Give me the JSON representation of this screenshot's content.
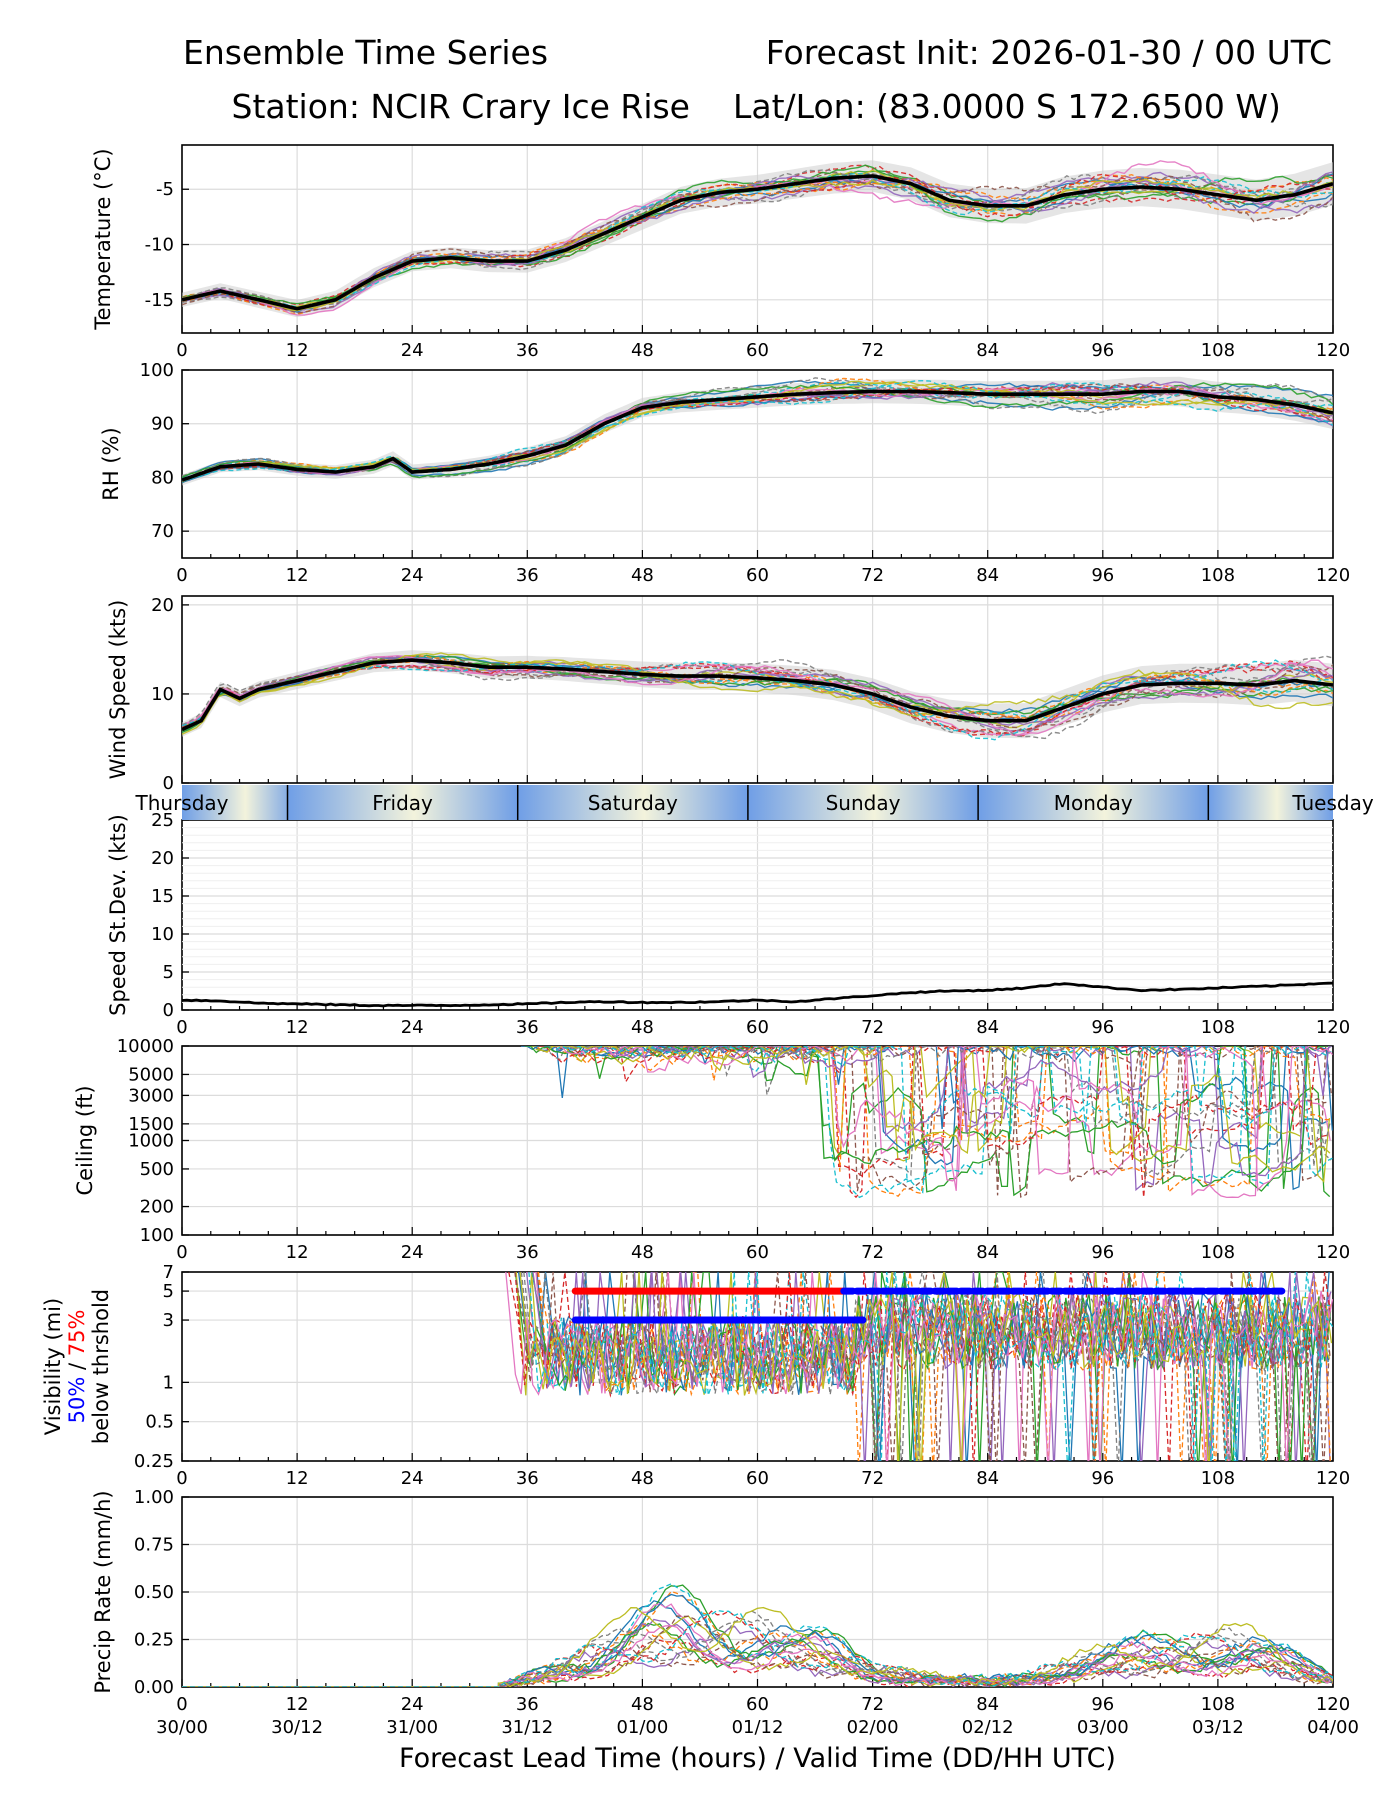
{
  "header": {
    "left_line1": "Ensemble Time Series",
    "right_line1": "Forecast Init: 2026-01-30 / 00 UTC",
    "left_line2": "Station: NCIR Crary Ice Rise",
    "right_line2": "Lat/Lon: (83.0000 S 172.6500 W)"
  },
  "colors": {
    "mean_line": "#000000",
    "spread_fill": "#d0d0d0",
    "vis_50": "#0000ff",
    "vis_75": "#ff0000",
    "day_band_blue": "#6f9ee6",
    "day_band_cream": "#f3f3dc",
    "member_palette": [
      "#1f77b4",
      "#ff7f0e",
      "#2ca02c",
      "#d62728",
      "#9467bd",
      "#8c564b",
      "#e377c2",
      "#7f7f7f",
      "#bcbd22",
      "#17becf"
    ]
  },
  "chart_data": [
    {
      "type": "line",
      "name": "temperature",
      "ylabel": "Temperature (°C)",
      "ylim": [
        -18,
        -1
      ],
      "yticks": [
        -15,
        -10,
        -5
      ],
      "xlim": [
        0,
        120
      ],
      "xticks": [
        0,
        12,
        24,
        36,
        48,
        60,
        72,
        84,
        96,
        108,
        120
      ],
      "mean_series": {
        "x": [
          0,
          4,
          8,
          12,
          16,
          20,
          24,
          28,
          32,
          36,
          40,
          44,
          48,
          52,
          56,
          60,
          64,
          68,
          72,
          76,
          80,
          84,
          88,
          92,
          96,
          100,
          104,
          108,
          112,
          116,
          120
        ],
        "values": [
          -15.0,
          -14.2,
          -15.0,
          -15.8,
          -15.0,
          -13.0,
          -11.5,
          -11.2,
          -11.5,
          -11.5,
          -10.5,
          -9.0,
          -7.5,
          -6.0,
          -5.3,
          -5.0,
          -4.5,
          -4.0,
          -3.8,
          -4.5,
          -6.0,
          -6.5,
          -6.5,
          -5.5,
          -5.0,
          -4.8,
          -5.0,
          -5.5,
          -6.0,
          -5.5,
          -4.5
        ]
      },
      "spread": 1.3,
      "members": 20
    },
    {
      "type": "line",
      "name": "relative_humidity",
      "ylabel": "RH (%)",
      "ylim": [
        65,
        100
      ],
      "yticks": [
        70,
        80,
        90,
        100
      ],
      "xlim": [
        0,
        120
      ],
      "xticks": [
        0,
        12,
        24,
        36,
        48,
        60,
        72,
        84,
        96,
        108,
        120
      ],
      "mean_series": {
        "x": [
          0,
          4,
          8,
          12,
          16,
          20,
          22,
          24,
          28,
          32,
          36,
          40,
          44,
          48,
          52,
          56,
          60,
          64,
          68,
          72,
          76,
          80,
          84,
          88,
          92,
          96,
          100,
          104,
          108,
          112,
          116,
          120
        ],
        "values": [
          79.5,
          82.0,
          82.5,
          81.5,
          81.0,
          82.0,
          83.5,
          81.0,
          81.5,
          82.5,
          84.0,
          86.0,
          90.0,
          93.0,
          94.0,
          94.5,
          95.0,
          95.5,
          95.8,
          96.0,
          96.0,
          95.8,
          95.5,
          95.5,
          95.5,
          95.5,
          96.0,
          96.0,
          95.0,
          94.5,
          93.5,
          92.0
        ]
      },
      "spread": 2.0,
      "members": 20
    },
    {
      "type": "line",
      "name": "wind_speed",
      "ylabel": "Wind Speed (kts)",
      "ylim": [
        0,
        21
      ],
      "yticks": [
        0,
        10,
        20
      ],
      "xlim": [
        0,
        120
      ],
      "xticks": [],
      "mean_series": {
        "x": [
          0,
          2,
          4,
          6,
          8,
          10,
          12,
          16,
          20,
          24,
          28,
          32,
          36,
          40,
          44,
          48,
          52,
          56,
          60,
          64,
          68,
          72,
          76,
          80,
          84,
          88,
          92,
          96,
          100,
          104,
          108,
          112,
          116,
          120
        ],
        "values": [
          6.0,
          7.0,
          10.5,
          9.5,
          10.5,
          11.0,
          11.5,
          12.5,
          13.5,
          13.8,
          13.5,
          13.0,
          13.0,
          12.8,
          12.5,
          12.2,
          12.0,
          12.0,
          11.8,
          11.5,
          11.0,
          10.0,
          8.5,
          7.5,
          7.0,
          7.0,
          8.5,
          10.0,
          11.0,
          11.2,
          11.2,
          11.0,
          11.5,
          11.0
        ]
      },
      "spread": 1.6,
      "members": 20
    },
    {
      "type": "line",
      "name": "speed_stdev",
      "ylabel": "Speed St.Dev. (kts)",
      "ylim": [
        0,
        25
      ],
      "yticks": [
        0,
        5,
        10,
        15,
        20,
        25
      ],
      "xlim": [
        0,
        120
      ],
      "xticks": [
        0,
        12,
        24,
        36,
        48,
        60,
        72,
        84,
        96,
        108,
        120
      ],
      "day_labels": [
        "Thursday",
        "Friday",
        "Saturday",
        "Sunday",
        "Monday",
        "Tuesday"
      ],
      "series": {
        "x": [
          0,
          4,
          8,
          12,
          16,
          20,
          24,
          28,
          32,
          36,
          40,
          44,
          48,
          52,
          56,
          60,
          64,
          68,
          72,
          76,
          80,
          84,
          88,
          92,
          96,
          100,
          104,
          108,
          112,
          116,
          120
        ],
        "values": [
          1.3,
          1.2,
          0.9,
          0.8,
          0.7,
          0.6,
          0.6,
          0.6,
          0.7,
          0.8,
          1.0,
          1.1,
          1.0,
          1.0,
          1.1,
          1.3,
          1.1,
          1.5,
          1.9,
          2.3,
          2.5,
          2.6,
          2.9,
          3.5,
          3.0,
          2.6,
          2.7,
          2.9,
          3.1,
          3.3,
          3.6
        ]
      }
    },
    {
      "type": "line",
      "name": "ceiling",
      "ylabel": "Ceiling (ft)",
      "yscale": "log",
      "ylim": [
        100,
        10000
      ],
      "yticks": [
        100,
        200,
        500,
        1000,
        1500,
        3000,
        5000,
        10000
      ],
      "ytick_labels": [
        "100",
        "200",
        "500",
        "1000",
        "1500",
        "3000",
        "5000",
        "10000"
      ],
      "xlim": [
        0,
        120
      ],
      "xticks": [
        0,
        12,
        24,
        36,
        48,
        60,
        72,
        84,
        96,
        108,
        120
      ],
      "onset_hour": 35,
      "members": 20
    },
    {
      "type": "line",
      "name": "visibility",
      "ylabel": "Visibility (mi)",
      "ylabel_part2_50": "50%",
      "ylabel_part2_sep": " / ",
      "ylabel_part2_75": "75%",
      "ylabel_part3": "below thrshold",
      "yscale": "log",
      "ylim": [
        0.25,
        7
      ],
      "yticks": [
        0.25,
        0.5,
        1,
        3,
        5,
        7
      ],
      "ytick_labels": [
        "0.25",
        "0.5",
        "1",
        "3",
        "5",
        "7"
      ],
      "xlim": [
        0,
        120
      ],
      "xticks": [
        0,
        12,
        24,
        36,
        48,
        60,
        72,
        84,
        96,
        108,
        120
      ],
      "threshold_bars": [
        {
          "level": 5,
          "color": "red",
          "x_start": 41,
          "x_end": 69
        },
        {
          "level": 3,
          "color": "red",
          "x_start": 45,
          "x_end": 68
        },
        {
          "level": 3,
          "color": "blue",
          "x_start": 41,
          "x_end": 71
        },
        {
          "level": 5,
          "color": "blue",
          "x_start": 69,
          "x_end": 115
        }
      ],
      "onset_hour": 33,
      "members": 20
    },
    {
      "type": "line",
      "name": "precip_rate",
      "ylabel": "Precip Rate (mm/h)",
      "ylim": [
        0,
        1.0
      ],
      "yticks": [
        0,
        0.25,
        0.5,
        0.75,
        1.0
      ],
      "ytick_labels": [
        "0.00",
        "0.25",
        "0.50",
        "0.75",
        "1.00"
      ],
      "xlim": [
        0,
        120
      ],
      "xticks": [
        0,
        12,
        24,
        36,
        48,
        60,
        72,
        84,
        96,
        108,
        120
      ],
      "valid_time_labels": [
        "30/00",
        "30/12",
        "31/00",
        "31/12",
        "01/00",
        "01/12",
        "02/00",
        "02/12",
        "03/00",
        "03/12",
        "04/00"
      ],
      "xlabel": "Forecast Lead Time (hours) / Valid Time (DD/HH UTC)",
      "envelope": {
        "x": [
          33,
          36,
          40,
          44,
          48,
          52,
          56,
          60,
          64,
          68,
          72,
          76,
          80,
          84,
          88,
          92,
          96,
          100,
          104,
          108,
          112,
          116,
          120
        ],
        "values": [
          0.0,
          0.05,
          0.12,
          0.2,
          0.3,
          0.35,
          0.3,
          0.28,
          0.22,
          0.18,
          0.1,
          0.06,
          0.04,
          0.03,
          0.05,
          0.1,
          0.15,
          0.18,
          0.2,
          0.22,
          0.2,
          0.12,
          0.05
        ]
      },
      "members": 20
    }
  ]
}
